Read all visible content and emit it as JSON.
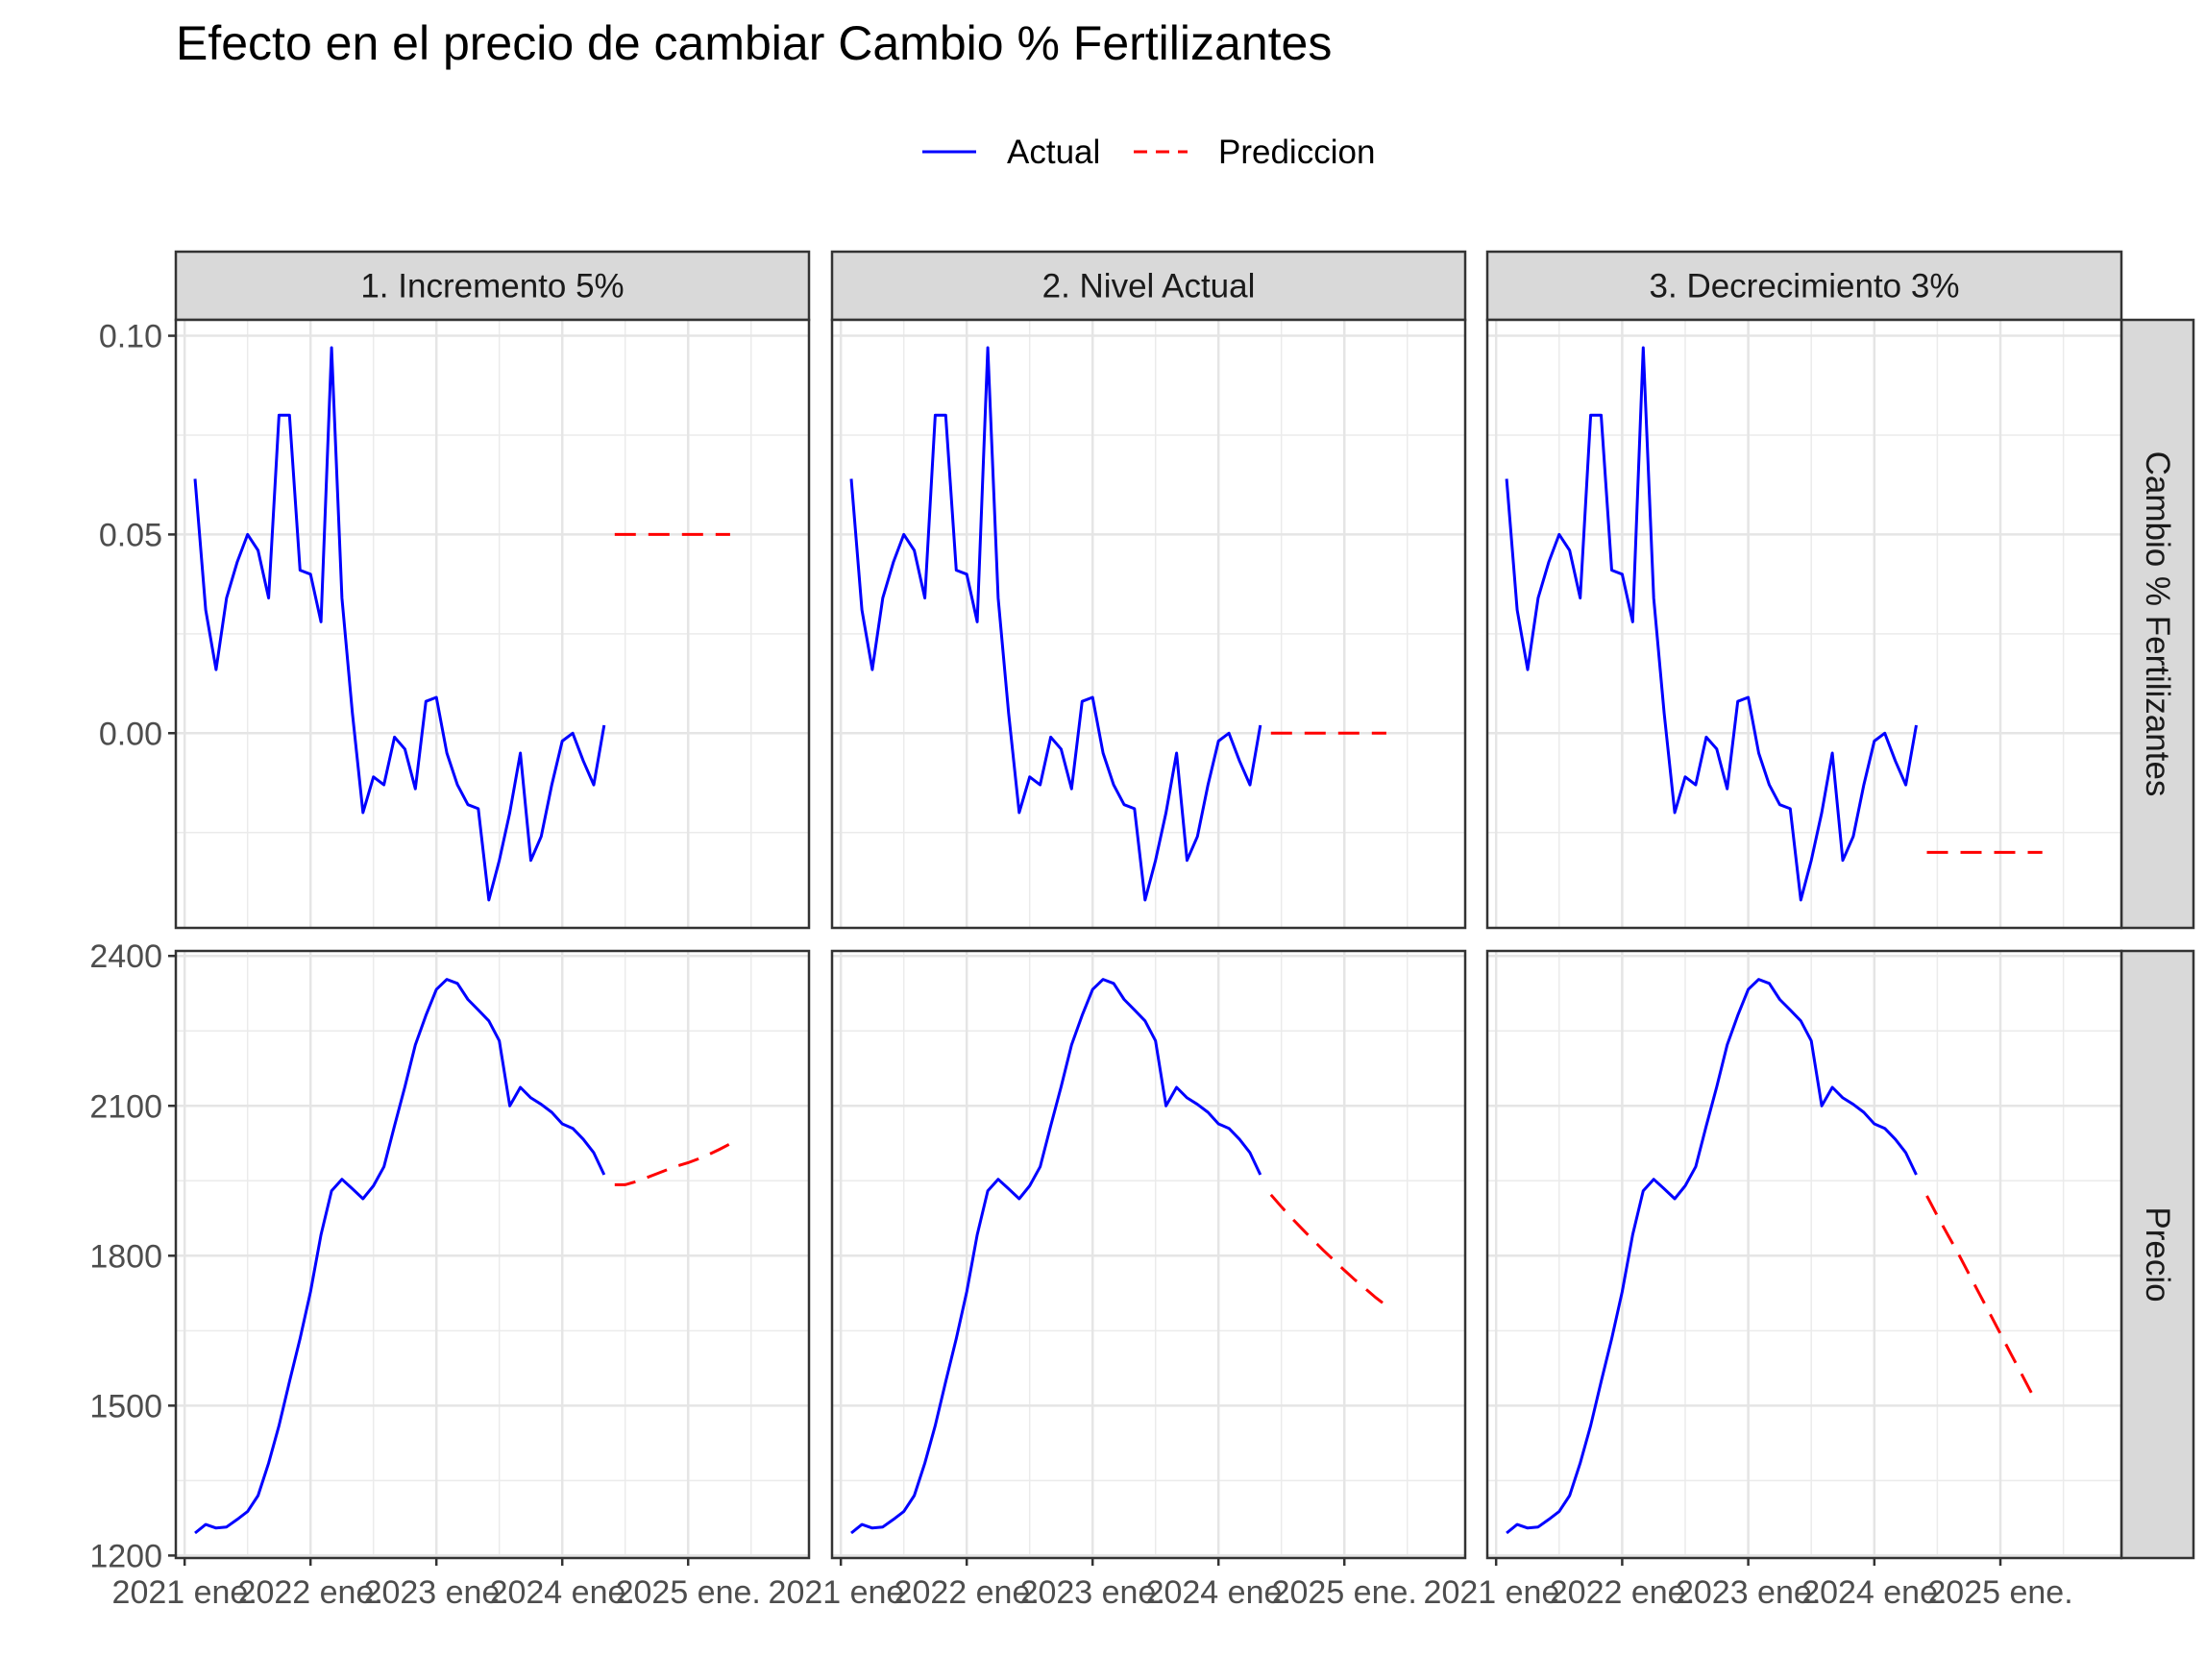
{
  "chart_data": {
    "type": "line",
    "title": "Efecto en el precio de cambiar Cambio % Fertilizantes",
    "legend": {
      "position": "top",
      "entries": [
        {
          "name": "Actual",
          "color": "#0000ff",
          "style": "solid"
        },
        {
          "name": "Prediccion",
          "color": "#ff0000",
          "style": "dashed"
        }
      ]
    },
    "grid": true,
    "columns": [
      "1. Incremento 5%",
      "2. Nivel Actual",
      "3. Decrecimiento 3%"
    ],
    "rows": [
      "Cambio % Fertilizantes",
      "Precio"
    ],
    "x_axis": {
      "type": "time",
      "range": [
        2020.93,
        2025.96
      ],
      "ticks": [
        {
          "value": 2021.0,
          "label": "2021 ene."
        },
        {
          "value": 2022.0,
          "label": "2022 ene."
        },
        {
          "value": 2023.0,
          "label": "2023 ene."
        },
        {
          "value": 2024.0,
          "label": "2024 ene."
        },
        {
          "value": 2025.0,
          "label": "2025 ene."
        }
      ]
    },
    "y_axes": {
      "Cambio % Fertilizantes": {
        "range": [
          -0.049,
          0.104
        ],
        "ticks": [
          {
            "value": 0.1,
            "label": "0.10"
          },
          {
            "value": 0.05,
            "label": "0.05"
          },
          {
            "value": 0.0,
            "label": "0.00"
          }
        ],
        "minor": [
          0.075,
          0.025,
          -0.025
        ]
      },
      "Precio": {
        "range": [
          1195,
          2410
        ],
        "ticks": [
          {
            "value": 2400,
            "label": "2400"
          },
          {
            "value": 2100,
            "label": "2100"
          },
          {
            "value": 1800,
            "label": "1800"
          },
          {
            "value": 1500,
            "label": "1500"
          },
          {
            "value": 1200,
            "label": "1200"
          }
        ],
        "minor": [
          2250,
          1950,
          1650,
          1350
        ]
      }
    },
    "actual": {
      "x": [
        2021.083,
        2021.167,
        2021.25,
        2021.333,
        2021.417,
        2021.5,
        2021.583,
        2021.667,
        2021.75,
        2021.833,
        2021.917,
        2022.0,
        2022.083,
        2022.167,
        2022.25,
        2022.333,
        2022.417,
        2022.5,
        2022.583,
        2022.667,
        2022.75,
        2022.833,
        2022.917,
        2023.0,
        2023.083,
        2023.167,
        2023.25,
        2023.333,
        2023.417,
        2023.5,
        2023.583,
        2023.667,
        2023.75,
        2023.833,
        2023.917,
        2024.0,
        2024.083,
        2024.167,
        2024.25,
        2024.333
      ],
      "cambio": [
        0.064,
        0.031,
        0.016,
        0.034,
        0.043,
        0.05,
        0.046,
        0.034,
        0.08,
        0.08,
        0.041,
        0.04,
        0.028,
        0.097,
        0.034,
        0.005,
        -0.02,
        -0.011,
        -0.013,
        -0.001,
        -0.004,
        -0.014,
        0.008,
        0.009,
        -0.005,
        -0.013,
        -0.018,
        -0.019,
        -0.042,
        -0.032,
        -0.02,
        -0.005,
        -0.032,
        -0.026,
        -0.013,
        -0.002,
        0.0,
        -0.007,
        -0.013,
        0.002
      ],
      "precio": [
        1245,
        1262,
        1255,
        1257,
        1272,
        1288,
        1320,
        1385,
        1460,
        1548,
        1634,
        1728,
        1842,
        1930,
        1953,
        1934,
        1914,
        1940,
        1978,
        2060,
        2138,
        2222,
        2281,
        2333,
        2353,
        2345,
        2313,
        2292,
        2270,
        2230,
        2100,
        2137,
        2116,
        2103,
        2087,
        2064,
        2055,
        2033,
        2006,
        1962
      ]
    },
    "prediccion": {
      "x": [
        2024.417,
        2024.5,
        2024.583,
        2024.667,
        2024.75,
        2024.833,
        2024.917,
        2025.0,
        2025.083,
        2025.167,
        2025.25,
        2025.333
      ],
      "cambio": {
        "1. Incremento 5%": [
          0.05,
          0.05,
          0.05,
          0.05,
          0.05,
          0.05,
          0.05,
          0.05,
          0.05,
          0.05,
          0.05,
          0.05
        ],
        "2. Nivel Actual": [
          0.0,
          0.0,
          0.0,
          0.0,
          0.0,
          0.0,
          0.0,
          0.0,
          0.0,
          0.0,
          0.0,
          0.0
        ],
        "3. Decrecimiento 3%": [
          -0.03,
          -0.03,
          -0.03,
          -0.03,
          -0.03,
          -0.03,
          -0.03,
          -0.03,
          -0.03,
          -0.03,
          -0.03,
          -0.03
        ]
      },
      "precio": {
        "1. Incremento 5%": [
          1942,
          1942,
          1948,
          1956,
          1964,
          1972,
          1980,
          1986,
          1994,
          2003,
          2013,
          2024
        ],
        "2. Nivel Actual": [
          1922,
          1898,
          1875,
          1853,
          1832,
          1811,
          1791,
          1771,
          1752,
          1734,
          1716,
          1700
        ],
        "3. Decrecimiento 3%": [
          1920,
          1880,
          1842,
          1804,
          1764,
          1724,
          1684,
          1644,
          1604,
          1564,
          1524,
          1525
        ]
      }
    }
  }
}
